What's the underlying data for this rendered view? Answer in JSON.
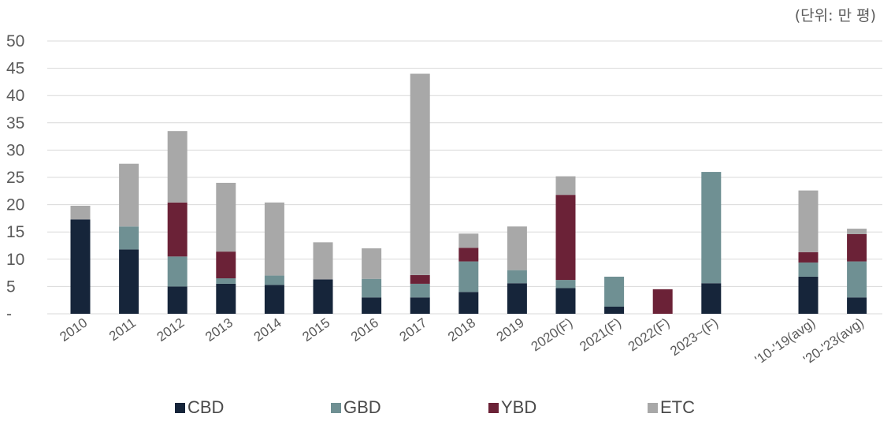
{
  "unit_label": "(단위: 만 평)",
  "colors": {
    "CBD": "#16253a",
    "GBD": "#6f9093",
    "YBD": "#6b2237",
    "ETC": "#a8a8a8",
    "grid": "#d9d9d9",
    "text": "#5a5a5a"
  },
  "chart_data": {
    "type": "bar",
    "stacked": true,
    "categories": [
      "2010",
      "2011",
      "2012",
      "2013",
      "2014",
      "2015",
      "2016",
      "2017",
      "2018",
      "2019",
      "2020(F)",
      "2021(F)",
      "2022(F)",
      "2023~(F)",
      "",
      "'10-'19(avg)",
      "'20-'23(avg)"
    ],
    "series": [
      {
        "name": "CBD",
        "values": [
          17.3,
          11.8,
          5.0,
          5.5,
          5.3,
          6.3,
          3.0,
          3.0,
          4.0,
          5.6,
          4.7,
          1.3,
          0,
          5.6,
          null,
          6.8,
          3.0
        ]
      },
      {
        "name": "GBD",
        "values": [
          0,
          4.2,
          5.5,
          1.0,
          1.7,
          0,
          3.4,
          2.5,
          5.6,
          2.4,
          1.5,
          5.5,
          0,
          20.4,
          null,
          2.6,
          6.6
        ]
      },
      {
        "name": "YBD",
        "values": [
          0,
          0,
          9.9,
          4.9,
          0,
          0,
          0,
          1.6,
          2.5,
          0,
          15.6,
          0,
          4.5,
          0,
          null,
          1.9,
          5.0
        ]
      },
      {
        "name": "ETC",
        "values": [
          2.5,
          11.5,
          13.1,
          12.6,
          13.4,
          6.8,
          5.6,
          36.9,
          2.6,
          8.0,
          3.4,
          0,
          0,
          0,
          null,
          11.3,
          1.0
        ]
      }
    ],
    "y_ticks": [
      "-",
      "5",
      "10",
      "15",
      "20",
      "25",
      "30",
      "35",
      "40",
      "45",
      "50"
    ],
    "ylim": [
      0,
      50
    ],
    "grid": true,
    "legend_position": "bottom",
    "legend": [
      "CBD",
      "GBD",
      "YBD",
      "ETC"
    ]
  }
}
